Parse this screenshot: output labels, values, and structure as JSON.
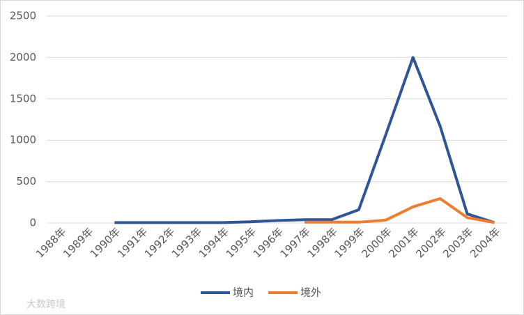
{
  "chart_data": {
    "type": "line",
    "categories": [
      "1988年",
      "1989年",
      "1990年",
      "1991年",
      "1992年",
      "1993年",
      "1994年",
      "1995年",
      "1996年",
      "1997年",
      "1998年",
      "1999年",
      "2000年",
      "2001年",
      "2002年",
      "2003年",
      "2004年"
    ],
    "series": [
      {
        "name": "境内",
        "color": "#2f5597",
        "values": [
          null,
          null,
          5,
          5,
          5,
          5,
          5,
          15,
          30,
          40,
          40,
          160,
          1070,
          2000,
          1170,
          110,
          5
        ]
      },
      {
        "name": "境外",
        "color": "#ed7d31",
        "values": [
          null,
          null,
          null,
          null,
          null,
          null,
          null,
          null,
          null,
          10,
          10,
          10,
          35,
          195,
          295,
          65,
          5
        ]
      }
    ],
    "ylim": [
      0,
      2500
    ],
    "yticks": [
      0,
      500,
      1000,
      1500,
      2000,
      2500
    ],
    "grid": true,
    "legend": "bottom"
  },
  "watermark": "大数跨境"
}
